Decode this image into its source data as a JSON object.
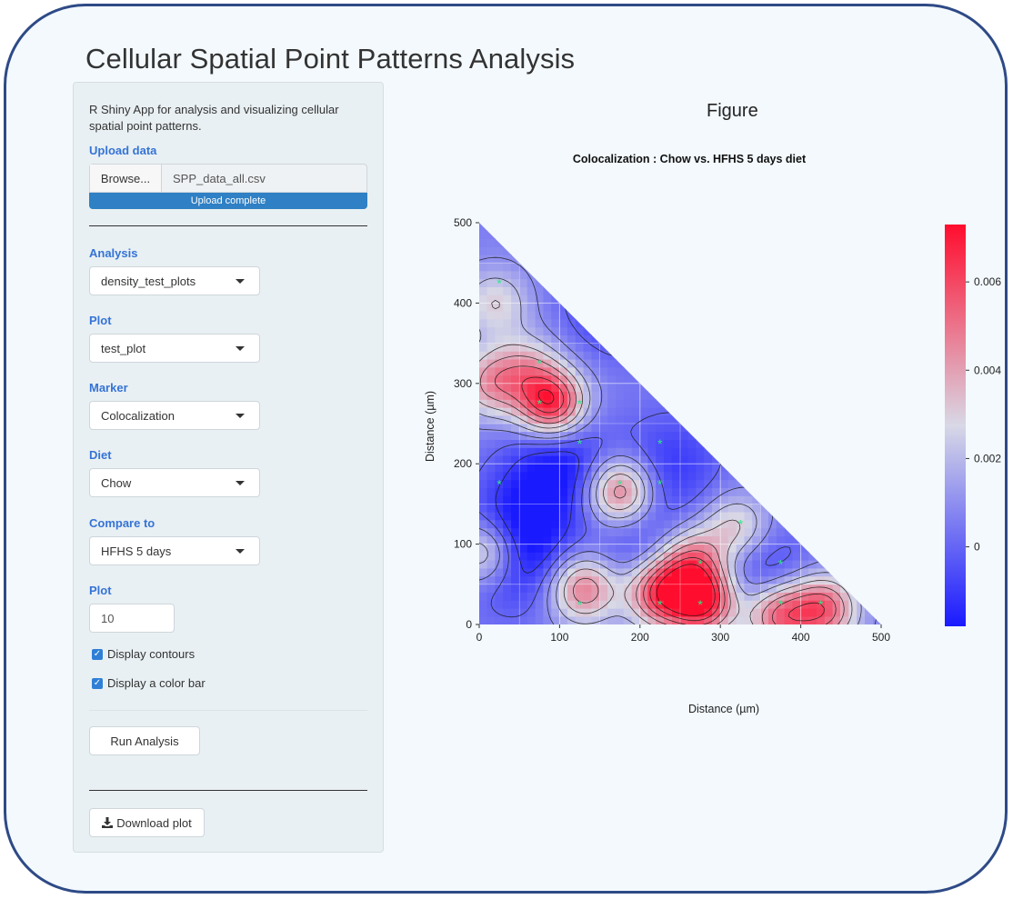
{
  "app": {
    "title": "Cellular Spatial Point Patterns Analysis"
  },
  "sidebar": {
    "intro": "R Shiny App for analysis and visualizing cellular spatial point patterns.",
    "upload": {
      "label": "Upload data",
      "browse_label": "Browse...",
      "file_name": "SPP_data_all.csv",
      "progress_text": "Upload complete",
      "progress": 1.0
    },
    "analysis": {
      "label": "Analysis",
      "value": "density_test_plots"
    },
    "plot_select": {
      "label": "Plot",
      "value": "test_plot"
    },
    "marker": {
      "label": "Marker",
      "value": "Colocalization"
    },
    "diet": {
      "label": "Diet",
      "value": "Chow"
    },
    "compare": {
      "label": "Compare to",
      "value": "HFHS 5 days"
    },
    "plot_number": {
      "label": "Plot",
      "value": "10"
    },
    "checkboxes": {
      "contours": {
        "label": "Display contours",
        "checked": true
      },
      "colorbar": {
        "label": "Display a color bar",
        "checked": true
      }
    },
    "run_label": "Run Analysis",
    "download_label": "Download plot"
  },
  "main": {
    "figure_heading": "Figure"
  },
  "chart_data": {
    "type": "heatmap",
    "title": "Colocalization : Chow vs. HFHS 5 days diet",
    "xlabel": "Distance (µm)",
    "ylabel": "Distance (µm)",
    "xlim": [
      0,
      500
    ],
    "ylim": [
      0,
      500
    ],
    "x_ticks": [
      "0",
      "100",
      "200",
      "300",
      "400",
      "500"
    ],
    "y_ticks": [
      "0",
      "100",
      "200",
      "300",
      "400",
      "500"
    ],
    "region": "lower-left triangle (x + y <= 500)",
    "grid": true,
    "contours": true,
    "colorbar": {
      "ticks": [
        "0",
        "0.002",
        "0.004",
        "0.006"
      ],
      "tick_values": [
        0,
        0.002,
        0.004,
        0.006
      ],
      "range": [
        -0.0018,
        0.0073
      ],
      "colors": [
        "#1a1aff",
        "#d8d8e6",
        "#ff0d2e"
      ]
    },
    "peaks": [
      {
        "x": 90,
        "y": 275,
        "v": 0.007
      },
      {
        "x": 278,
        "y": 30,
        "v": 0.0073
      },
      {
        "x": 225,
        "y": 40,
        "v": 0.006
      },
      {
        "x": 130,
        "y": 45,
        "v": 0.005
      },
      {
        "x": 372,
        "y": 12,
        "v": 0.0055
      },
      {
        "x": 428,
        "y": 20,
        "v": 0.0055
      },
      {
        "x": 175,
        "y": 165,
        "v": 0.0055
      },
      {
        "x": 265,
        "y": 80,
        "v": 0.0045
      },
      {
        "x": 15,
        "y": 300,
        "v": 0.004
      },
      {
        "x": 10,
        "y": 90,
        "v": 0.0045
      },
      {
        "x": 320,
        "y": 120,
        "v": 0.0035
      },
      {
        "x": 60,
        "y": 320,
        "v": 0.003
      },
      {
        "x": 20,
        "y": 400,
        "v": 0.003
      }
    ],
    "troughs": [
      {
        "x": 100,
        "y": 200,
        "v": -0.0018
      },
      {
        "x": 40,
        "y": 80,
        "v": -0.0016
      },
      {
        "x": 350,
        "y": 60,
        "v": -0.0012
      },
      {
        "x": 240,
        "y": 200,
        "v": -0.001
      },
      {
        "x": 170,
        "y": 400,
        "v": -0.0012
      },
      {
        "x": 55,
        "y": 130,
        "v": -0.0012
      },
      {
        "x": 200,
        "y": 100,
        "v": -0.0008
      }
    ],
    "stars": [
      {
        "x": 25,
        "y": 425
      },
      {
        "x": 75,
        "y": 325
      },
      {
        "x": 75,
        "y": 275
      },
      {
        "x": 125,
        "y": 275
      },
      {
        "x": 125,
        "y": 225
      },
      {
        "x": 225,
        "y": 225
      },
      {
        "x": 25,
        "y": 175
      },
      {
        "x": 175,
        "y": 175
      },
      {
        "x": 225,
        "y": 175
      },
      {
        "x": 325,
        "y": 125
      },
      {
        "x": 275,
        "y": 75
      },
      {
        "x": 375,
        "y": 75
      },
      {
        "x": 125,
        "y": 25
      },
      {
        "x": 225,
        "y": 25
      },
      {
        "x": 275,
        "y": 25
      },
      {
        "x": 375,
        "y": 25
      },
      {
        "x": 425,
        "y": 25
      }
    ],
    "star_color": "#2ee88a"
  }
}
